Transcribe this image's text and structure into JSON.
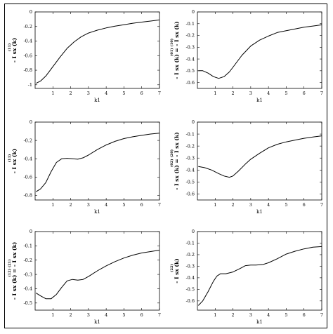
{
  "colors": {
    "line": "#000000",
    "frame": "#000000",
    "background": "#ffffff"
  },
  "chart_data": [
    {
      "type": "line",
      "xlabel": "k1",
      "ylabel": {
        "main": "- I sx (k)",
        "sup": "(11)"
      },
      "xlim": [
        0,
        7
      ],
      "ylim": [
        -1.05,
        0
      ],
      "xticks": [
        1,
        2,
        3,
        4,
        5,
        6,
        7
      ],
      "yticks": [
        {
          "v": 0,
          "t": "0"
        },
        {
          "v": -0.2,
          "t": "-0.2"
        },
        {
          "v": -0.4,
          "t": "-0.4"
        },
        {
          "v": -0.6,
          "t": "-0.6"
        },
        {
          "v": -0.8,
          "t": "-0.8"
        },
        {
          "v": -1,
          "t": "-1"
        }
      ],
      "series": [
        {
          "x": [
            0.05,
            0.3,
            0.6,
            1.0,
            1.4,
            1.8,
            2.2,
            2.6,
            3.0,
            3.5,
            4.0,
            4.5,
            5.0,
            5.5,
            6.0,
            6.5,
            7.0
          ],
          "y": [
            -0.98,
            -0.95,
            -0.88,
            -0.75,
            -0.62,
            -0.5,
            -0.41,
            -0.34,
            -0.29,
            -0.25,
            -0.22,
            -0.195,
            -0.175,
            -0.155,
            -0.14,
            -0.125,
            -0.11
          ]
        }
      ]
    },
    {
      "type": "line",
      "xlabel": "k1",
      "ylabel": {
        "main": "- I sx (k) = - I sx (k)",
        "sup": "(01)       (10)"
      },
      "xlim": [
        0,
        7
      ],
      "ylim": [
        -0.65,
        0
      ],
      "xticks": [
        1,
        2,
        3,
        4,
        5,
        6,
        7
      ],
      "yticks": [
        {
          "v": 0,
          "t": "0"
        },
        {
          "v": -0.1,
          "t": "-0.1"
        },
        {
          "v": -0.2,
          "t": "-0.2"
        },
        {
          "v": -0.3,
          "t": "-0.3"
        },
        {
          "v": -0.4,
          "t": "-0.4"
        },
        {
          "v": -0.5,
          "t": "-0.5"
        },
        {
          "v": -0.6,
          "t": "-0.6"
        }
      ],
      "series": [
        {
          "x": [
            0.05,
            0.3,
            0.6,
            0.9,
            1.2,
            1.5,
            1.8,
            2.1,
            2.5,
            3.0,
            3.5,
            4.0,
            4.5,
            5.0,
            5.5,
            6.0,
            6.5,
            7.0
          ],
          "y": [
            -0.5,
            -0.5,
            -0.52,
            -0.55,
            -0.565,
            -0.55,
            -0.51,
            -0.45,
            -0.37,
            -0.29,
            -0.24,
            -0.205,
            -0.175,
            -0.16,
            -0.145,
            -0.13,
            -0.12,
            -0.11
          ]
        }
      ]
    },
    {
      "type": "line",
      "xlabel": "k1",
      "ylabel": {
        "main": "- I sx (k)",
        "sup": "(11)"
      },
      "xlim": [
        0,
        7
      ],
      "ylim": [
        -0.85,
        0
      ],
      "xticks": [
        1,
        2,
        3,
        4,
        5,
        6,
        7
      ],
      "yticks": [
        {
          "v": 0,
          "t": "0"
        },
        {
          "v": -0.2,
          "t": "-0.2"
        },
        {
          "v": -0.4,
          "t": "-0.4"
        },
        {
          "v": -0.6,
          "t": "-0.6"
        },
        {
          "v": -0.8,
          "t": "-0.8"
        }
      ],
      "series": [
        {
          "x": [
            0.05,
            0.3,
            0.6,
            0.9,
            1.2,
            1.5,
            1.8,
            2.1,
            2.4,
            2.7,
            3.0,
            3.5,
            4.0,
            4.5,
            5.0,
            5.5,
            6.0,
            6.5,
            7.0
          ],
          "y": [
            -0.76,
            -0.73,
            -0.66,
            -0.54,
            -0.44,
            -0.4,
            -0.395,
            -0.4,
            -0.405,
            -0.39,
            -0.36,
            -0.3,
            -0.25,
            -0.21,
            -0.18,
            -0.16,
            -0.145,
            -0.13,
            -0.12
          ]
        }
      ]
    },
    {
      "type": "line",
      "xlabel": "k1",
      "ylabel": {
        "main": "- I sx (k) = - I sx (k)",
        "sup": "(02)       (20)"
      },
      "xlim": [
        0,
        7
      ],
      "ylim": [
        -0.65,
        0
      ],
      "xticks": [
        1,
        2,
        3,
        4,
        5,
        6,
        7
      ],
      "yticks": [
        {
          "v": 0,
          "t": "0"
        },
        {
          "v": -0.1,
          "t": "-0.1"
        },
        {
          "v": -0.2,
          "t": "-0.2"
        },
        {
          "v": -0.3,
          "t": "-0.3"
        },
        {
          "v": -0.4,
          "t": "-0.4"
        },
        {
          "v": -0.5,
          "t": "-0.5"
        },
        {
          "v": -0.6,
          "t": "-0.6"
        }
      ],
      "series": [
        {
          "x": [
            0.05,
            0.4,
            0.8,
            1.2,
            1.5,
            1.8,
            2.0,
            2.3,
            2.7,
            3.0,
            3.5,
            4.0,
            4.5,
            5.0,
            5.5,
            6.0,
            6.5,
            7.0
          ],
          "y": [
            -0.37,
            -0.38,
            -0.4,
            -0.43,
            -0.45,
            -0.46,
            -0.45,
            -0.41,
            -0.35,
            -0.31,
            -0.26,
            -0.215,
            -0.185,
            -0.165,
            -0.15,
            -0.135,
            -0.125,
            -0.115
          ]
        }
      ]
    },
    {
      "type": "line",
      "xlabel": "k1",
      "ylabel": {
        "main": "- I sx (k) = - I sx (k)",
        "sup": "(12)       (21)"
      },
      "xlim": [
        0,
        7
      ],
      "ylim": [
        -0.55,
        0
      ],
      "xticks": [
        1,
        2,
        3,
        4,
        5,
        6,
        7
      ],
      "yticks": [
        {
          "v": 0,
          "t": "0"
        },
        {
          "v": -0.1,
          "t": "-0.1"
        },
        {
          "v": -0.2,
          "t": "-0.2"
        },
        {
          "v": -0.3,
          "t": "-0.3"
        },
        {
          "v": -0.4,
          "t": "-0.4"
        },
        {
          "v": -0.5,
          "t": "-0.5"
        }
      ],
      "series": [
        {
          "x": [
            0.05,
            0.3,
            0.6,
            0.9,
            1.2,
            1.5,
            1.8,
            2.1,
            2.4,
            2.7,
            3.0,
            3.5,
            4.0,
            4.5,
            5.0,
            5.5,
            6.0,
            6.5,
            7.0
          ],
          "y": [
            -0.43,
            -0.45,
            -0.47,
            -0.47,
            -0.44,
            -0.39,
            -0.345,
            -0.335,
            -0.34,
            -0.335,
            -0.315,
            -0.275,
            -0.24,
            -0.21,
            -0.185,
            -0.165,
            -0.15,
            -0.14,
            -0.13
          ]
        }
      ]
    },
    {
      "type": "line",
      "xlabel": "k1",
      "ylabel": {
        "main": "- I sx (k)",
        "sup": "(22)"
      },
      "xlim": [
        0,
        7
      ],
      "ylim": [
        -0.68,
        0
      ],
      "xticks": [
        1,
        2,
        3,
        4,
        5,
        6,
        7
      ],
      "yticks": [
        {
          "v": 0,
          "t": "0"
        },
        {
          "v": -0.1,
          "t": "-0.1"
        },
        {
          "v": -0.2,
          "t": "-0.2"
        },
        {
          "v": -0.3,
          "t": "-0.3"
        },
        {
          "v": -0.4,
          "t": "-0.4"
        },
        {
          "v": -0.5,
          "t": "-0.5"
        },
        {
          "v": -0.6,
          "t": "-0.6"
        }
      ],
      "series": [
        {
          "x": [
            0.05,
            0.3,
            0.6,
            0.9,
            1.1,
            1.3,
            1.6,
            2.0,
            2.4,
            2.7,
            3.0,
            3.3,
            3.7,
            4.0,
            4.5,
            5.0,
            5.5,
            6.0,
            6.5,
            7.0
          ],
          "y": [
            -0.64,
            -0.6,
            -0.52,
            -0.43,
            -0.385,
            -0.365,
            -0.365,
            -0.35,
            -0.32,
            -0.295,
            -0.29,
            -0.29,
            -0.285,
            -0.27,
            -0.235,
            -0.195,
            -0.17,
            -0.15,
            -0.135,
            -0.13
          ]
        }
      ]
    }
  ]
}
